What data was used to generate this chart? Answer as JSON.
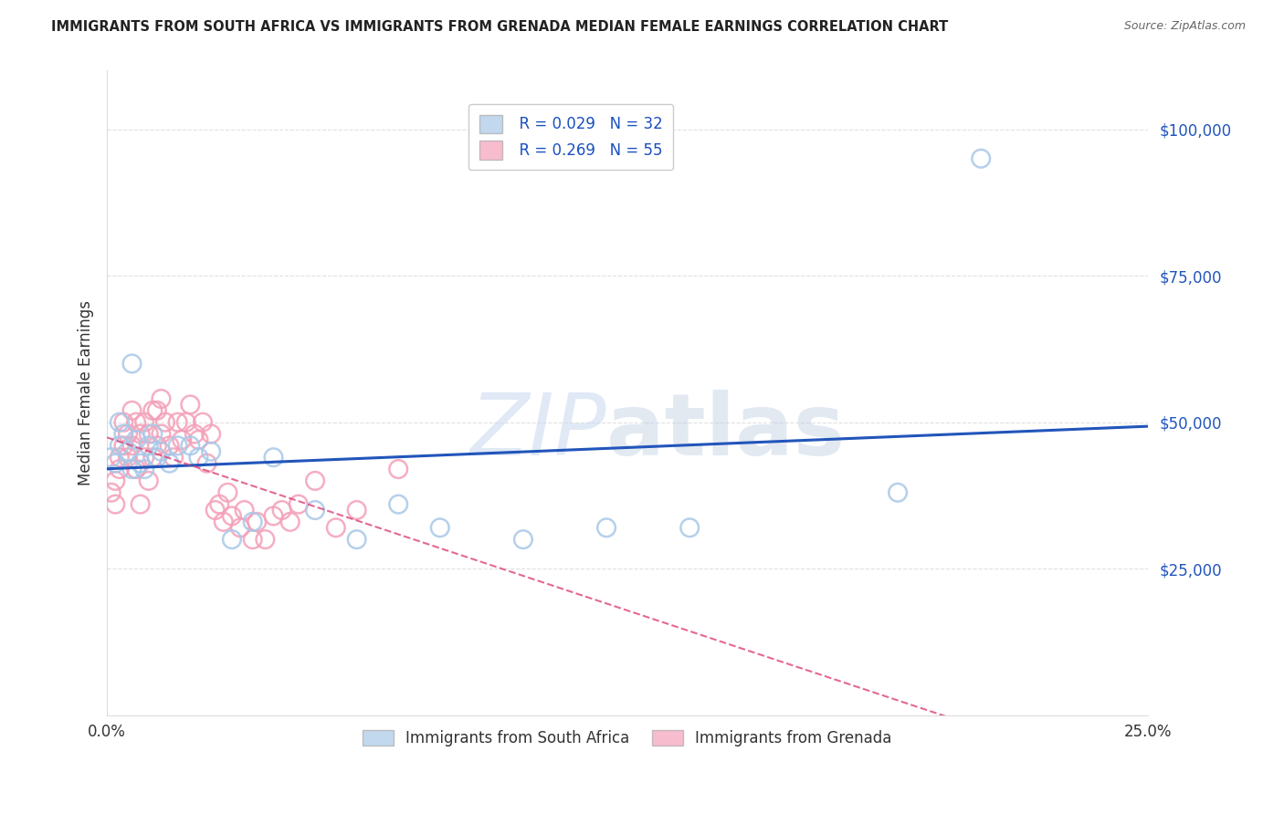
{
  "title": "IMMIGRANTS FROM SOUTH AFRICA VS IMMIGRANTS FROM GRENADA MEDIAN FEMALE EARNINGS CORRELATION CHART",
  "source": "Source: ZipAtlas.com",
  "ylabel_label": "Median Female Earnings",
  "xlim": [
    0.0,
    0.25
  ],
  "ylim": [
    0,
    110000
  ],
  "yticks": [
    0,
    25000,
    50000,
    75000,
    100000
  ],
  "xticks": [
    0.0,
    0.05,
    0.1,
    0.15,
    0.2,
    0.25
  ],
  "watermark_zip": "ZIP",
  "watermark_atlas": "atlas",
  "legend_r1": "R = 0.029",
  "legend_n1": "N = 32",
  "legend_r2": "R = 0.269",
  "legend_n2": "N = 55",
  "color_blue": "#a8c8e8",
  "color_pink": "#f4a0b8",
  "line_color_blue": "#2255bb",
  "line_color_pink": "#dd4477",
  "background": "#ffffff",
  "grid_color": "#e0e0e0",
  "sa_x": [
    0.001,
    0.002,
    0.003,
    0.003,
    0.004,
    0.005,
    0.006,
    0.006,
    0.007,
    0.008,
    0.009,
    0.01,
    0.011,
    0.012,
    0.013,
    0.015,
    0.017,
    0.02,
    0.022,
    0.025,
    0.03,
    0.035,
    0.04,
    0.05,
    0.06,
    0.07,
    0.08,
    0.1,
    0.12,
    0.14,
    0.19,
    0.21
  ],
  "sa_y": [
    44000,
    43000,
    50000,
    46000,
    48000,
    45000,
    60000,
    42000,
    47000,
    43000,
    42000,
    46000,
    48000,
    44000,
    45000,
    43000,
    46000,
    46000,
    44000,
    45000,
    30000,
    33000,
    44000,
    35000,
    30000,
    36000,
    32000,
    30000,
    32000,
    32000,
    38000,
    95000
  ],
  "gr_x": [
    0.001,
    0.002,
    0.002,
    0.003,
    0.003,
    0.004,
    0.004,
    0.005,
    0.005,
    0.006,
    0.006,
    0.007,
    0.007,
    0.008,
    0.008,
    0.009,
    0.009,
    0.01,
    0.01,
    0.011,
    0.011,
    0.012,
    0.012,
    0.013,
    0.013,
    0.014,
    0.015,
    0.016,
    0.017,
    0.018,
    0.019,
    0.02,
    0.021,
    0.022,
    0.023,
    0.024,
    0.025,
    0.026,
    0.027,
    0.028,
    0.029,
    0.03,
    0.032,
    0.033,
    0.035,
    0.036,
    0.038,
    0.04,
    0.042,
    0.044,
    0.046,
    0.05,
    0.055,
    0.06,
    0.07
  ],
  "gr_y": [
    38000,
    36000,
    40000,
    44000,
    42000,
    50000,
    46000,
    48000,
    44000,
    52000,
    46000,
    50000,
    42000,
    48000,
    36000,
    50000,
    44000,
    40000,
    48000,
    52000,
    44000,
    52000,
    46000,
    54000,
    48000,
    50000,
    46000,
    44000,
    50000,
    47000,
    50000,
    53000,
    48000,
    47000,
    50000,
    43000,
    48000,
    35000,
    36000,
    33000,
    38000,
    34000,
    32000,
    35000,
    30000,
    33000,
    30000,
    34000,
    35000,
    33000,
    36000,
    40000,
    32000,
    35000,
    42000
  ]
}
